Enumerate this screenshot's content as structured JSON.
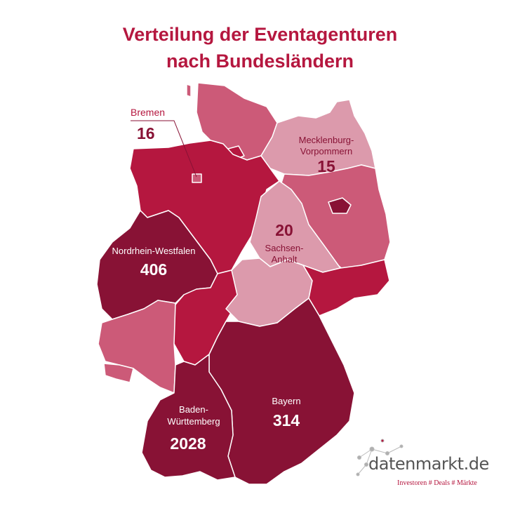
{
  "title": {
    "line1": "Verteilung der Eventagenturen",
    "line2": "nach Bundesländern"
  },
  "colors": {
    "title": "#b5173f",
    "darkest": "#881235",
    "dark": "#b5173f",
    "medium": "#cc5a78",
    "light": "#dc9aac",
    "label_dark": "#881235"
  },
  "states": [
    {
      "name": "Schleswig-Holstein",
      "shade": "medium"
    },
    {
      "name": "Mecklenburg-Vorpommern",
      "shade": "light"
    },
    {
      "name": "Niedersachsen",
      "shade": "dark"
    },
    {
      "name": "Bremen",
      "shade": "medium"
    },
    {
      "name": "Hamburg",
      "shade": "dark"
    },
    {
      "name": "Brandenburg",
      "shade": "medium"
    },
    {
      "name": "Berlin",
      "shade": "darkest"
    },
    {
      "name": "Sachsen-Anhalt",
      "shade": "light"
    },
    {
      "name": "Nordrhein-Westfalen",
      "shade": "darkest"
    },
    {
      "name": "Hessen",
      "shade": "dark"
    },
    {
      "name": "Thüringen",
      "shade": "light"
    },
    {
      "name": "Sachsen",
      "shade": "dark"
    },
    {
      "name": "Rheinland-Pfalz",
      "shade": "medium"
    },
    {
      "name": "Saarland",
      "shade": "medium"
    },
    {
      "name": "Bayern",
      "shade": "darkest"
    },
    {
      "name": "Baden-Württemberg",
      "shade": "darkest"
    }
  ],
  "labels": {
    "bremen": {
      "name": "Bremen",
      "value": "16"
    },
    "mv": {
      "name_line1": "Mecklenburg-",
      "name_line2": "Vorpommern",
      "value": "15"
    },
    "sa": {
      "value": "20",
      "name_line1": "Sachsen-",
      "name_line2": "Anhalt"
    },
    "nrw": {
      "name": "Nordrhein-Westfalen",
      "value": "406"
    },
    "bayern": {
      "name": "Bayern",
      "value": "314"
    },
    "bw": {
      "name_line1": "Baden-",
      "name_line2": "Württemberg",
      "value": "2028"
    }
  },
  "logo": {
    "name": "datenmarkt.de",
    "tagline": "Investoren # Deals # Märkte"
  }
}
